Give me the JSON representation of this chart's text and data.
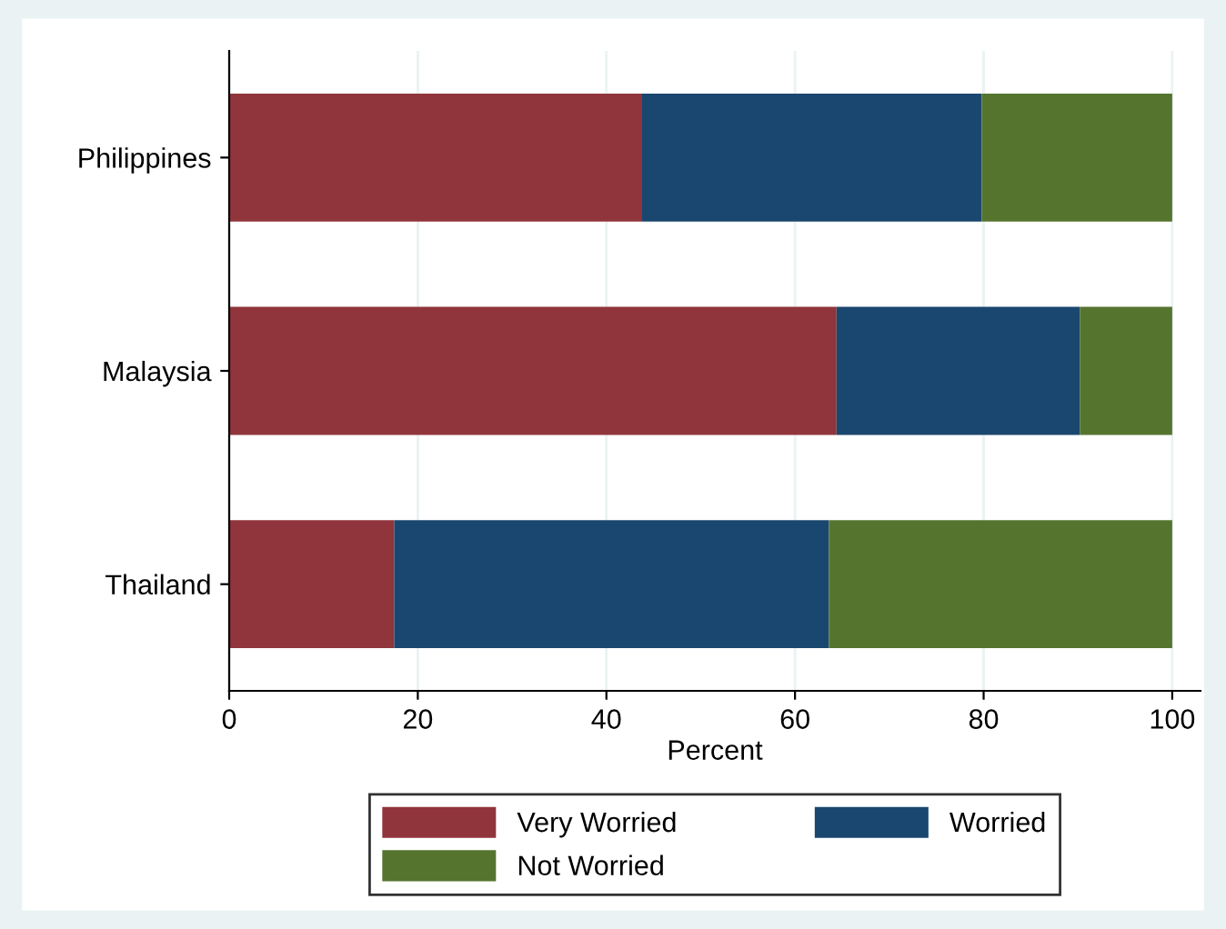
{
  "chart_data": {
    "type": "bar",
    "orientation": "horizontal",
    "stacked": true,
    "categories": [
      "Philippines",
      "Malaysia",
      "Thailand"
    ],
    "series": [
      {
        "name": "Very Worried",
        "color": "#90353b",
        "values": [
          43.7,
          64.4,
          17.5
        ]
      },
      {
        "name": "Worried",
        "color": "#1a476f",
        "values": [
          36.1,
          25.8,
          46.1
        ]
      },
      {
        "name": "Not Worried",
        "color": "#55752f",
        "values": [
          20.2,
          9.8,
          36.4
        ]
      }
    ],
    "xlabel": "Percent",
    "xlim": [
      0,
      103
    ],
    "xticks": [
      0,
      20,
      40,
      60,
      80,
      100
    ],
    "grid": "x",
    "legend": "bottom"
  }
}
